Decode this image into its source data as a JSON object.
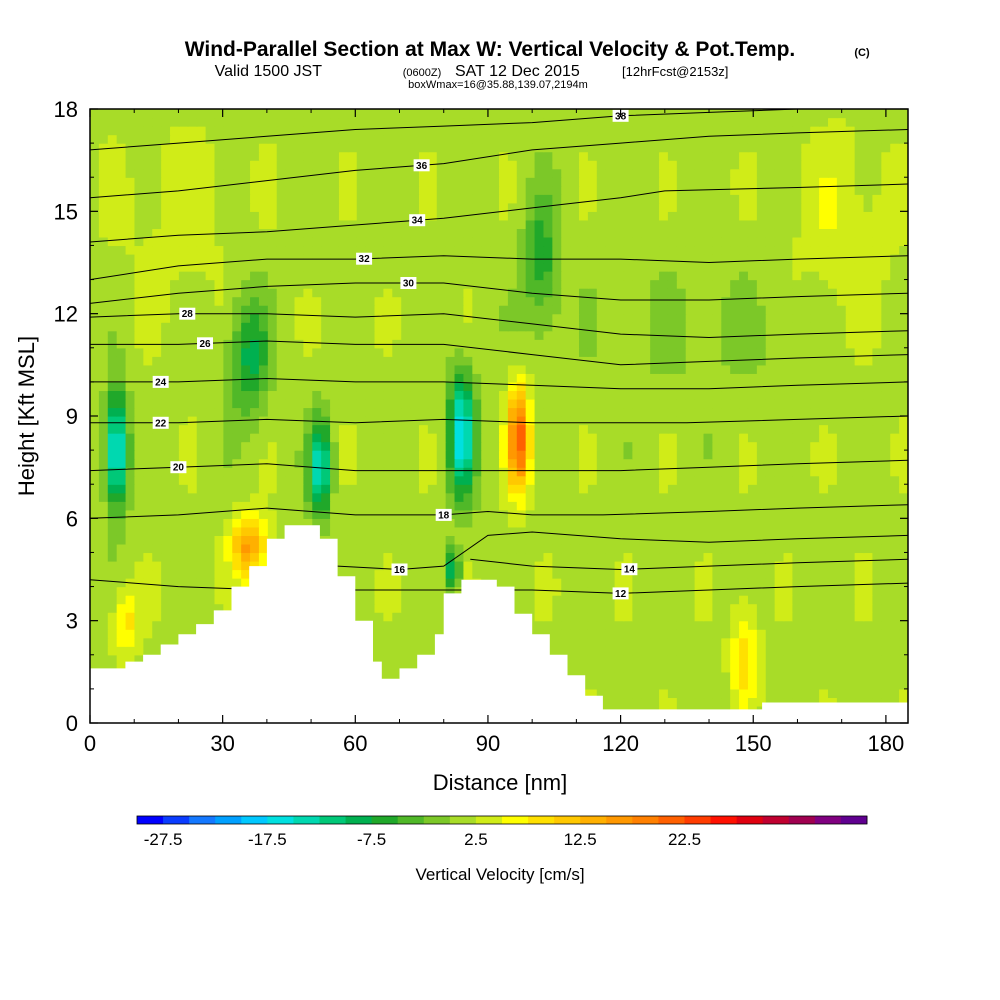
{
  "title": {
    "main": "Wind-Parallel Section at Max W: Vertical Velocity & Pot.Temp.",
    "mark": "(C)",
    "valid_prefix": "Valid 1500 JST",
    "valid_utc": "(0600Z)",
    "valid_date": "SAT 12 Dec 2015",
    "forecast": "[12hrFcst@2153z]",
    "box": "boxWmax=16@35.88,139.07,2194m"
  },
  "chart_data": {
    "type": "heatmap",
    "xlabel": "Distance [nm]",
    "ylabel": "Height [Kft MSL]",
    "xlim": [
      0,
      185
    ],
    "ylim": [
      0,
      18
    ],
    "x_ticks": [
      "0",
      "30",
      "60",
      "90",
      "120",
      "150",
      "180"
    ],
    "y_ticks": [
      "0",
      "3",
      "6",
      "9",
      "12",
      "15",
      "18"
    ],
    "colorbar": {
      "label": "Vertical Velocity [cm/s]",
      "tick_labels": [
        "-27.5",
        "-17.5",
        "-7.5",
        "2.5",
        "12.5",
        "22.5"
      ],
      "colors": [
        "#0000ff",
        "#0a3cff",
        "#1478ff",
        "#00a0ff",
        "#00c8ff",
        "#00e0e0",
        "#00d8b0",
        "#00c878",
        "#00b050",
        "#20a82a",
        "#50b828",
        "#7cc828",
        "#a8dc28",
        "#d0ec18",
        "#ffff00",
        "#ffe000",
        "#ffc800",
        "#ffb000",
        "#ff9800",
        "#ff8000",
        "#ff6000",
        "#ff3c00",
        "#ff1000",
        "#e00010",
        "#c00030",
        "#a00050",
        "#800080",
        "#600090"
      ]
    },
    "terrain": [
      {
        "x": 0,
        "y": 1.6
      },
      {
        "x": 4,
        "y": 1.6
      },
      {
        "x": 8,
        "y": 1.8
      },
      {
        "x": 12,
        "y": 2.0
      },
      {
        "x": 16,
        "y": 2.3
      },
      {
        "x": 20,
        "y": 2.6
      },
      {
        "x": 24,
        "y": 2.9
      },
      {
        "x": 28,
        "y": 3.3
      },
      {
        "x": 32,
        "y": 4.0
      },
      {
        "x": 36,
        "y": 4.6
      },
      {
        "x": 40,
        "y": 5.4
      },
      {
        "x": 44,
        "y": 5.8
      },
      {
        "x": 48,
        "y": 5.8
      },
      {
        "x": 52,
        "y": 5.4
      },
      {
        "x": 56,
        "y": 4.3
      },
      {
        "x": 60,
        "y": 3.0
      },
      {
        "x": 64,
        "y": 1.8
      },
      {
        "x": 66,
        "y": 1.3
      },
      {
        "x": 70,
        "y": 1.6
      },
      {
        "x": 74,
        "y": 2.0
      },
      {
        "x": 78,
        "y": 2.6
      },
      {
        "x": 80,
        "y": 3.8
      },
      {
        "x": 84,
        "y": 4.2
      },
      {
        "x": 88,
        "y": 4.2
      },
      {
        "x": 92,
        "y": 4.0
      },
      {
        "x": 96,
        "y": 3.2
      },
      {
        "x": 100,
        "y": 2.6
      },
      {
        "x": 104,
        "y": 2.0
      },
      {
        "x": 108,
        "y": 1.4
      },
      {
        "x": 112,
        "y": 0.8
      },
      {
        "x": 116,
        "y": 0.4
      },
      {
        "x": 120,
        "y": 0.4
      },
      {
        "x": 130,
        "y": 0.4
      },
      {
        "x": 140,
        "y": 0.4
      },
      {
        "x": 150,
        "y": 0.4
      },
      {
        "x": 152,
        "y": 0.6
      },
      {
        "x": 160,
        "y": 0.6
      },
      {
        "x": 170,
        "y": 0.6
      },
      {
        "x": 180,
        "y": 0.6
      },
      {
        "x": 185,
        "y": 0.6
      }
    ],
    "w_blobs": [
      {
        "x": 6,
        "y": 8.0,
        "sx": 2.5,
        "sy": 1.7,
        "v": -20
      },
      {
        "x": 36,
        "y": 10.8,
        "sx": 4.5,
        "sy": 1.8,
        "v": -10
      },
      {
        "x": 52,
        "y": 7.5,
        "sx": 2.5,
        "sy": 1.4,
        "v": -16
      },
      {
        "x": 84,
        "y": 8.5,
        "sx": 3.0,
        "sy": 1.8,
        "v": -18
      },
      {
        "x": 82,
        "y": 4.5,
        "sx": 1.5,
        "sy": 0.6,
        "v": -14
      },
      {
        "x": 97,
        "y": 8.3,
        "sx": 2.5,
        "sy": 1.5,
        "v": 20
      },
      {
        "x": 36,
        "y": 5.2,
        "sx": 4.0,
        "sy": 0.9,
        "v": 14
      },
      {
        "x": 102,
        "y": 13.5,
        "sx": 4.0,
        "sy": 2.0,
        "v": -8
      },
      {
        "x": 148,
        "y": 2.0,
        "sx": 3.0,
        "sy": 1.5,
        "v": 8
      },
      {
        "x": 8,
        "y": 3.0,
        "sx": 3.0,
        "sy": 1.0,
        "v": 7
      },
      {
        "x": 140,
        "y": 11.5,
        "sx": 25.0,
        "sy": 2.0,
        "v": -2
      },
      {
        "x": 170,
        "y": 14.5,
        "sx": 12.0,
        "sy": 3.0,
        "v": 3
      },
      {
        "x": 20,
        "y": 15.0,
        "sx": 15.0,
        "sy": 3.0,
        "v": 2
      }
    ],
    "theta_contours": [
      {
        "value": "12",
        "label_x": 120,
        "points": [
          [
            0,
            4.2
          ],
          [
            20,
            4.0
          ],
          [
            40,
            3.9
          ],
          [
            60,
            3.9
          ],
          [
            80,
            3.9
          ],
          [
            100,
            3.9
          ],
          [
            120,
            3.8
          ],
          [
            140,
            3.9
          ],
          [
            160,
            4.0
          ],
          [
            185,
            4.1
          ]
        ]
      },
      {
        "value": "14",
        "label_x": 122,
        "points": [
          [
            86,
            4.8
          ],
          [
            100,
            4.6
          ],
          [
            120,
            4.5
          ],
          [
            140,
            4.6
          ],
          [
            160,
            4.7
          ],
          [
            185,
            4.8
          ]
        ]
      },
      {
        "value": "16",
        "label_x": 70,
        "points": [
          [
            56,
            4.6
          ],
          [
            70,
            4.5
          ],
          [
            80,
            4.6
          ],
          [
            90,
            5.5
          ],
          [
            100,
            5.6
          ],
          [
            120,
            5.4
          ],
          [
            140,
            5.3
          ],
          [
            160,
            5.4
          ],
          [
            185,
            5.5
          ]
        ]
      },
      {
        "value": "18",
        "label_x": 80,
        "points": [
          [
            0,
            6.0
          ],
          [
            20,
            6.1
          ],
          [
            40,
            6.3
          ],
          [
            60,
            6.1
          ],
          [
            80,
            6.1
          ],
          [
            90,
            6.2
          ],
          [
            100,
            6.1
          ],
          [
            116,
            6.1
          ],
          [
            140,
            6.2
          ],
          [
            160,
            6.3
          ],
          [
            185,
            6.4
          ]
        ]
      },
      {
        "value": "20",
        "label_x": 20,
        "points": [
          [
            0,
            7.4
          ],
          [
            20,
            7.5
          ],
          [
            40,
            7.6
          ],
          [
            60,
            7.4
          ],
          [
            80,
            7.4
          ],
          [
            100,
            7.4
          ],
          [
            120,
            7.4
          ],
          [
            140,
            7.5
          ],
          [
            160,
            7.6
          ],
          [
            185,
            7.7
          ]
        ]
      },
      {
        "value": "22",
        "label_x": 16,
        "points": [
          [
            0,
            8.8
          ],
          [
            20,
            8.8
          ],
          [
            40,
            8.9
          ],
          [
            60,
            8.8
          ],
          [
            80,
            8.9
          ],
          [
            100,
            8.8
          ],
          [
            120,
            8.8
          ],
          [
            135,
            8.8
          ],
          [
            160,
            8.9
          ],
          [
            185,
            9.0
          ]
        ]
      },
      {
        "value": "24",
        "label_x": 16,
        "points": [
          [
            0,
            10.0
          ],
          [
            20,
            10.0
          ],
          [
            40,
            10.1
          ],
          [
            60,
            10.0
          ],
          [
            80,
            10.0
          ],
          [
            100,
            9.9
          ],
          [
            120,
            9.8
          ],
          [
            140,
            9.8
          ],
          [
            160,
            9.9
          ],
          [
            185,
            10.0
          ]
        ]
      },
      {
        "value": "26",
        "label_x": 26,
        "points": [
          [
            0,
            11.1
          ],
          [
            20,
            11.1
          ],
          [
            40,
            11.2
          ],
          [
            60,
            11.1
          ],
          [
            80,
            11.1
          ],
          [
            100,
            10.8
          ],
          [
            120,
            10.5
          ],
          [
            140,
            10.6
          ],
          [
            160,
            10.7
          ],
          [
            185,
            10.8
          ]
        ]
      },
      {
        "value": "28",
        "label_x": 22,
        "points": [
          [
            0,
            11.9
          ],
          [
            20,
            12.0
          ],
          [
            40,
            12.0
          ],
          [
            60,
            11.9
          ],
          [
            80,
            12.0
          ],
          [
            100,
            11.7
          ],
          [
            120,
            11.4
          ],
          [
            140,
            11.3
          ],
          [
            160,
            11.4
          ],
          [
            185,
            11.5
          ]
        ]
      },
      {
        "value": "30",
        "label_x": 72,
        "points": [
          [
            0,
            12.3
          ],
          [
            20,
            12.6
          ],
          [
            40,
            12.8
          ],
          [
            60,
            12.9
          ],
          [
            80,
            12.9
          ],
          [
            100,
            12.6
          ],
          [
            120,
            12.4
          ],
          [
            140,
            12.4
          ],
          [
            160,
            12.5
          ],
          [
            185,
            12.6
          ]
        ]
      },
      {
        "value": "32",
        "label_x": 62,
        "points": [
          [
            0,
            13.0
          ],
          [
            20,
            13.4
          ],
          [
            40,
            13.6
          ],
          [
            60,
            13.6
          ],
          [
            80,
            13.7
          ],
          [
            100,
            13.6
          ],
          [
            120,
            13.6
          ],
          [
            140,
            13.5
          ],
          [
            160,
            13.6
          ],
          [
            185,
            13.7
          ]
        ]
      },
      {
        "value": "34",
        "label_x": 74,
        "points": [
          [
            0,
            14.1
          ],
          [
            20,
            14.3
          ],
          [
            40,
            14.4
          ],
          [
            60,
            14.6
          ],
          [
            80,
            14.8
          ],
          [
            100,
            15.1
          ],
          [
            120,
            15.4
          ],
          [
            130,
            15.6
          ],
          [
            160,
            15.7
          ],
          [
            185,
            15.8
          ]
        ]
      },
      {
        "value": "36",
        "label_x": 75,
        "points": [
          [
            0,
            15.4
          ],
          [
            20,
            15.6
          ],
          [
            40,
            15.9
          ],
          [
            60,
            16.2
          ],
          [
            80,
            16.4
          ],
          [
            100,
            16.8
          ],
          [
            120,
            17.0
          ],
          [
            140,
            17.2
          ],
          [
            160,
            17.3
          ],
          [
            185,
            17.4
          ]
        ]
      },
      {
        "value": "38",
        "label_x": 120,
        "points": [
          [
            0,
            16.8
          ],
          [
            20,
            17.0
          ],
          [
            40,
            17.2
          ],
          [
            60,
            17.4
          ],
          [
            80,
            17.5
          ],
          [
            100,
            17.6
          ],
          [
            120,
            17.8
          ],
          [
            140,
            17.9
          ],
          [
            160,
            18.0
          ],
          [
            185,
            18.0
          ]
        ]
      }
    ]
  }
}
